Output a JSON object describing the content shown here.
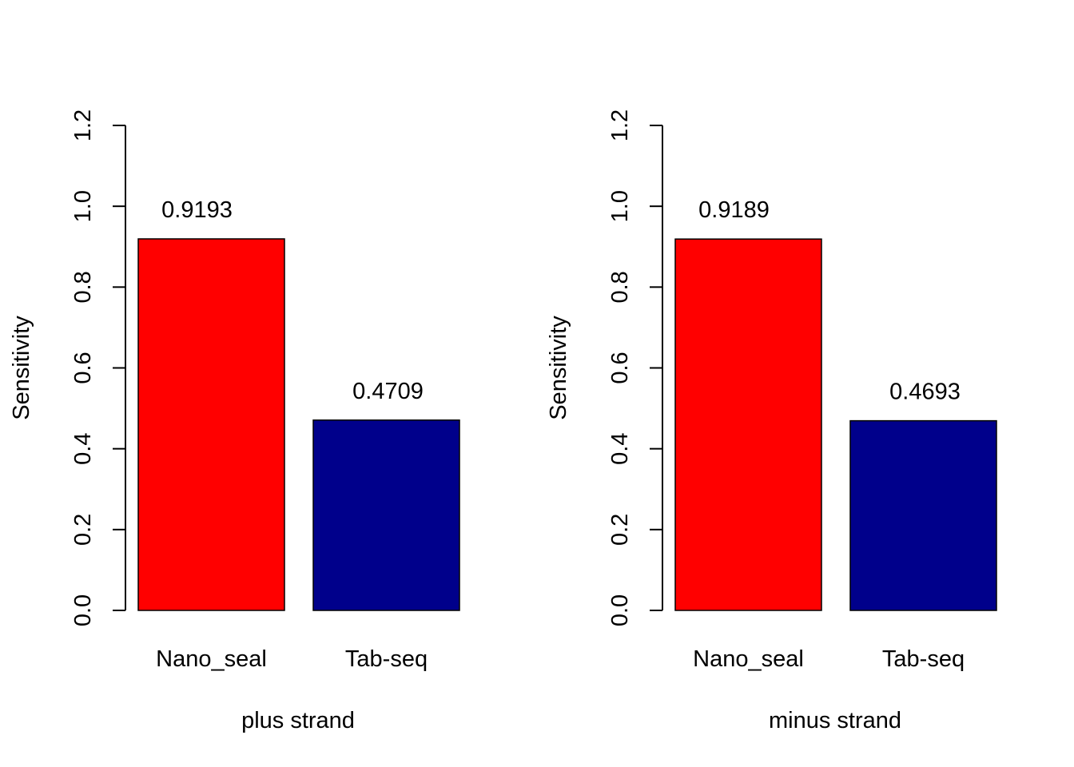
{
  "chart_data": [
    {
      "type": "bar",
      "categories": [
        "Nano_seal",
        "Tab-seq"
      ],
      "values": [
        0.9193,
        0.4709
      ],
      "data_labels": [
        "0.9193",
        "0.4709"
      ],
      "colors": [
        "#ff0000",
        "#00008b"
      ],
      "title": "",
      "xlabel": "plus strand",
      "ylabel": "Sensitivity",
      "ylim": [
        0,
        1.2
      ],
      "yticks": [
        "0.0",
        "0.2",
        "0.4",
        "0.6",
        "0.8",
        "1.0",
        "1.2"
      ],
      "grid": false,
      "legend": "none"
    },
    {
      "type": "bar",
      "categories": [
        "Nano_seal",
        "Tab-seq"
      ],
      "values": [
        0.9189,
        0.4693
      ],
      "data_labels": [
        "0.9189",
        "0.4693"
      ],
      "colors": [
        "#ff0000",
        "#00008b"
      ],
      "title": "",
      "xlabel": "minus strand",
      "ylabel": "Sensitivity",
      "ylim": [
        0,
        1.2
      ],
      "yticks": [
        "0.0",
        "0.2",
        "0.4",
        "0.6",
        "0.8",
        "1.0",
        "1.2"
      ],
      "grid": false,
      "legend": "none"
    }
  ]
}
